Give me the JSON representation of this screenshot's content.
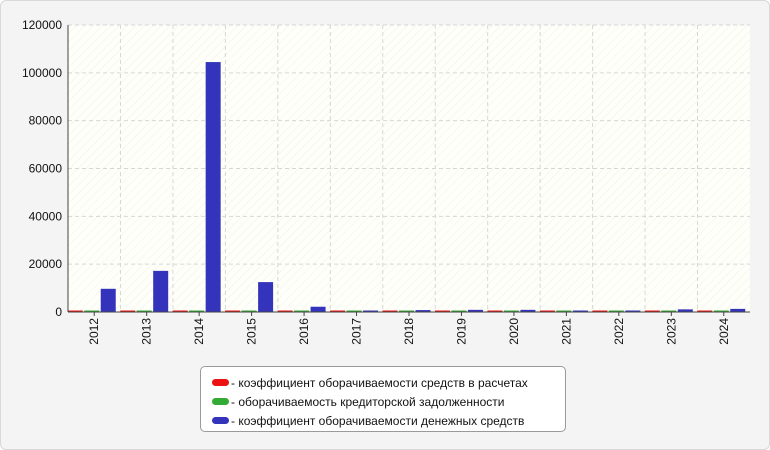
{
  "chart_data": {
    "type": "bar",
    "categories": [
      "2012",
      "2013",
      "2014",
      "2015",
      "2016",
      "2017",
      "2018",
      "2019",
      "2020",
      "2021",
      "2022",
      "2023",
      "2024"
    ],
    "series": [
      {
        "name": "коэффициент оборачиваемости средств в расчетах",
        "color": "#ee1111",
        "values": [
          300,
          300,
          300,
          300,
          300,
          300,
          300,
          300,
          300,
          300,
          300,
          300,
          300
        ]
      },
      {
        "name": "оборачиваемость кредиторской задолженности",
        "color": "#33aa33",
        "values": [
          300,
          300,
          300,
          300,
          300,
          300,
          300,
          300,
          300,
          300,
          300,
          300,
          300
        ]
      },
      {
        "name": "коэффициент оборачиваемости денежных средств",
        "color": "#3333bb",
        "values": [
          9700,
          17200,
          104500,
          12500,
          2200,
          300,
          800,
          900,
          900,
          300,
          600,
          1100,
          1300
        ]
      }
    ],
    "title": "",
    "xlabel": "",
    "ylabel": "",
    "ylim": [
      0,
      120000
    ],
    "yticks": [
      "0",
      "20000",
      "40000",
      "60000",
      "80000",
      "100000",
      "120000"
    ],
    "grid": true,
    "legend_position": "bottom-center"
  }
}
